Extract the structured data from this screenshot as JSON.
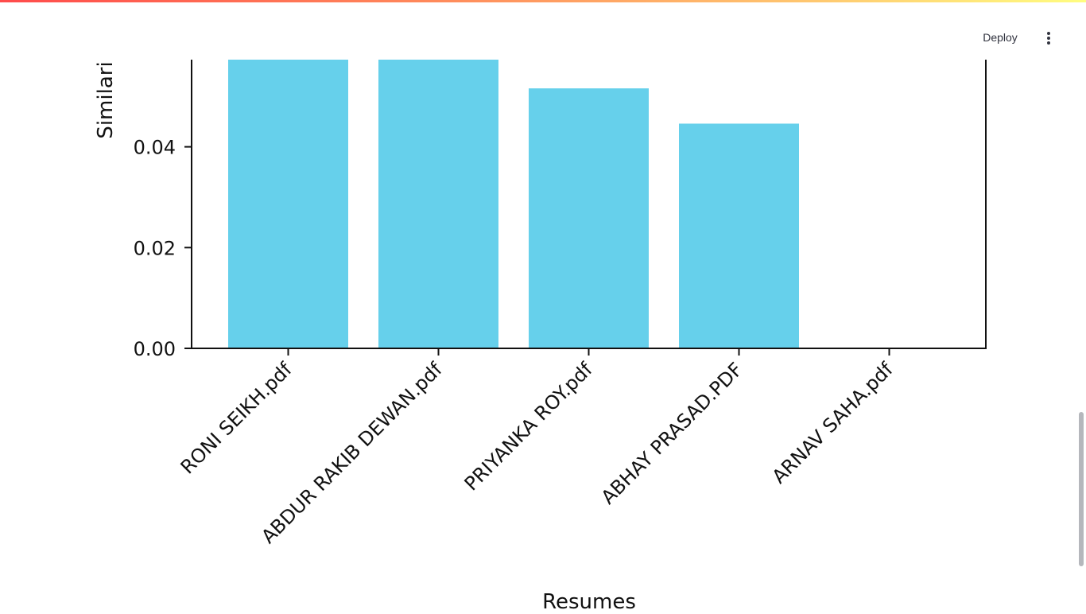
{
  "header": {
    "deploy_label": "Deploy",
    "menu_icon": "vertical-ellipsis-icon"
  },
  "colors": {
    "bar": "#66d0eb",
    "axis": "#111111",
    "accent_gradient": [
      "#ff4b4b",
      "#fffd80"
    ]
  },
  "chart_data": {
    "type": "bar",
    "categories": [
      "RONI SEIKH.pdf",
      "ABDUR RAKIB DEWAN.pdf",
      "PRIYANKA ROY.pdf",
      "ABHAY PRASAD.PDF",
      "ARNAV SAHA.pdf"
    ],
    "values": [
      0.0595,
      0.0595,
      0.0516,
      0.0446,
      0.0
    ],
    "xlabel": "Resumes",
    "ylabel": "Similari",
    "yticks": [
      "0.00",
      "0.02",
      "0.04"
    ],
    "ytick_values": [
      0,
      0.02,
      0.04
    ],
    "ylim": [
      0,
      0.0573
    ],
    "grid": false,
    "legend": "none"
  }
}
